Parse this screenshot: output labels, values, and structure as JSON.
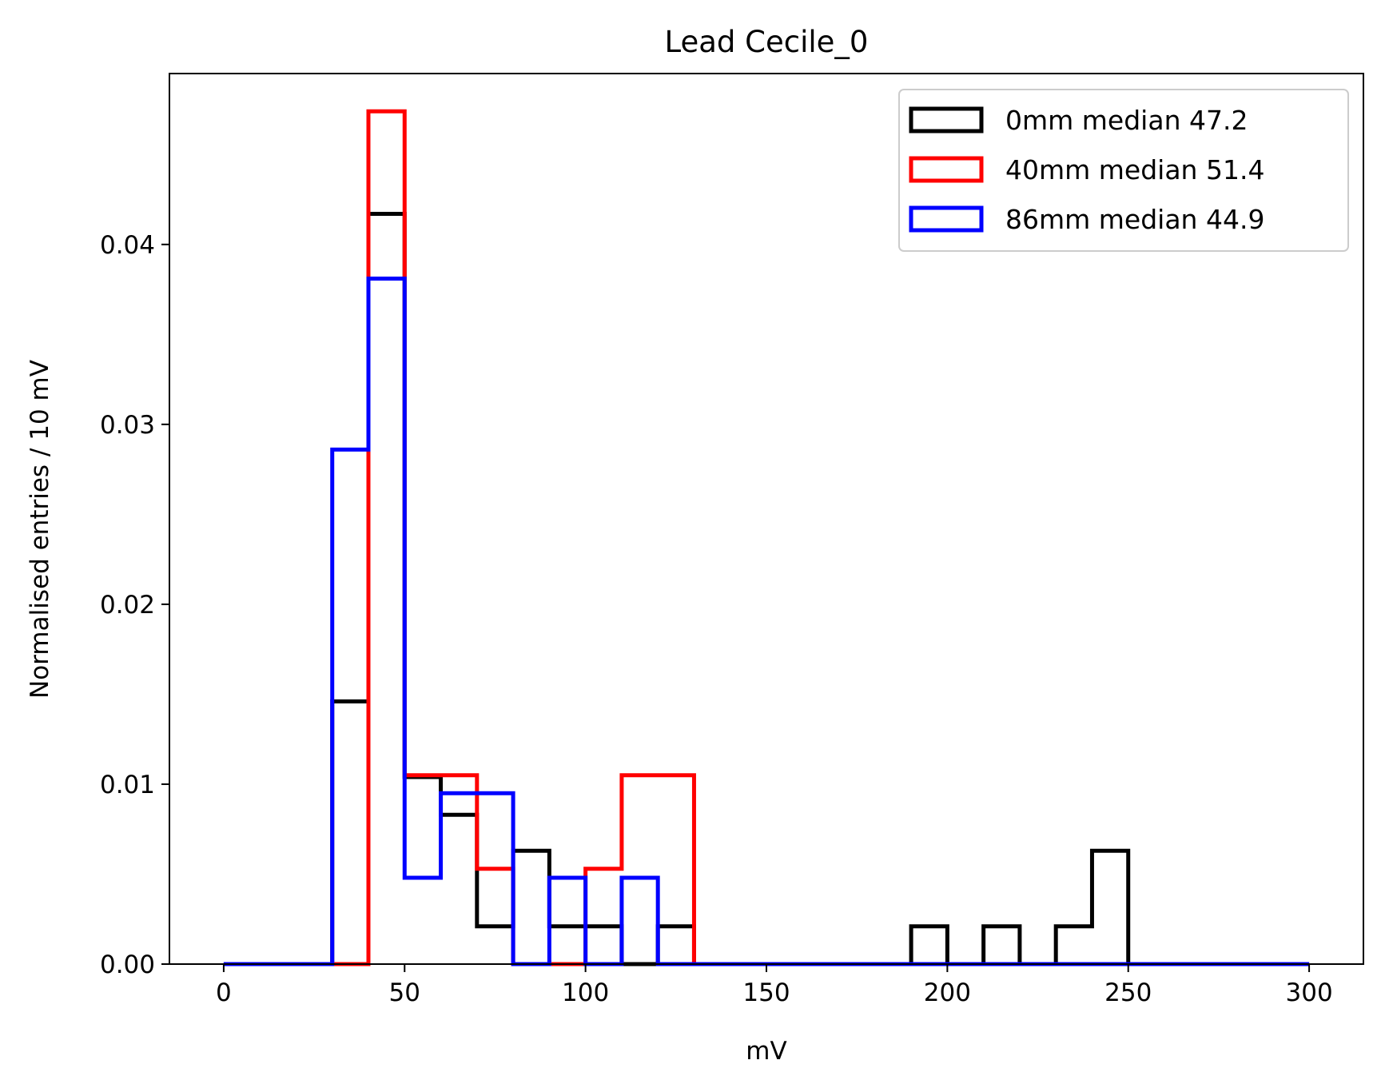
{
  "chart_data": {
    "type": "histogram-step",
    "title": "Lead Cecile_0",
    "xlabel": "mV",
    "ylabel": "Normalised entries / 10 mV",
    "xlim": [
      -15,
      315
    ],
    "ylim": [
      0,
      0.0495
    ],
    "xticks": [
      0,
      50,
      100,
      150,
      200,
      250,
      300
    ],
    "xtick_labels": [
      "0",
      "50",
      "100",
      "150",
      "200",
      "250",
      "300"
    ],
    "yticks": [
      0,
      0.01,
      0.02,
      0.03,
      0.04
    ],
    "ytick_labels": [
      "0.00",
      "0.01",
      "0.02",
      "0.03",
      "0.04"
    ],
    "bin_edges": [
      0,
      10,
      20,
      30,
      40,
      50,
      60,
      70,
      80,
      90,
      100,
      110,
      120,
      130,
      140,
      150,
      160,
      170,
      180,
      190,
      200,
      210,
      220,
      230,
      240,
      250,
      260,
      270,
      280,
      290,
      300
    ],
    "grid": false,
    "legend_position": "top-right",
    "series": [
      {
        "name": "0mm median 47.2",
        "color": "#000000",
        "values": [
          0,
          0,
          0,
          0.0146,
          0.0417,
          0.0104,
          0.0083,
          0.0021,
          0.0063,
          0.0021,
          0.0021,
          0,
          0.0021,
          0,
          0,
          0,
          0,
          0,
          0,
          0.0021,
          0,
          0.0021,
          0,
          0.0021,
          0.0063,
          0,
          0,
          0,
          0,
          0
        ]
      },
      {
        "name": "40mm median 51.4",
        "color": "#ff0000",
        "values": [
          0,
          0,
          0,
          0,
          0.0474,
          0.0105,
          0.0105,
          0.0053,
          0,
          0,
          0.0053,
          0.0105,
          0.0105,
          0,
          0,
          0,
          0,
          0,
          0,
          0,
          0,
          0,
          0,
          0,
          0,
          0,
          0,
          0,
          0,
          0
        ]
      },
      {
        "name": "86mm median 44.9",
        "color": "#0000ff",
        "values": [
          0,
          0,
          0,
          0.0286,
          0.0381,
          0.0048,
          0.0095,
          0.0095,
          0,
          0.0048,
          0,
          0.0048,
          0,
          0,
          0,
          0,
          0,
          0,
          0,
          0,
          0,
          0,
          0,
          0,
          0,
          0,
          0,
          0,
          0,
          0
        ]
      }
    ]
  }
}
